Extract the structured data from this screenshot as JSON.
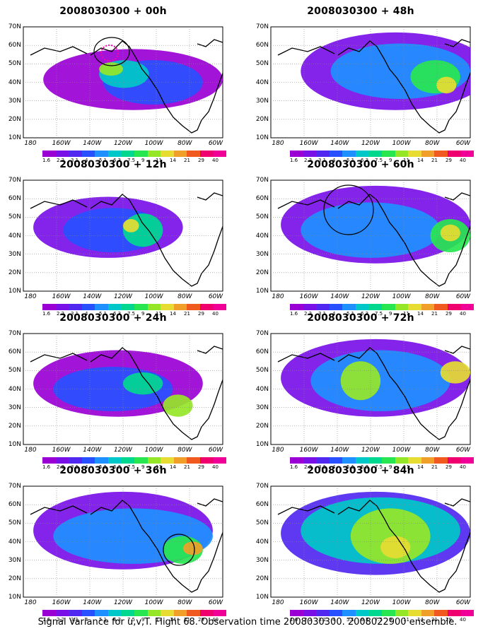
{
  "panels": [
    {
      "id": "p00",
      "title": "2008030300 + 00h",
      "target": "ellipse"
    },
    {
      "id": "p48",
      "title": "2008030300 + 48h",
      "target": "none"
    },
    {
      "id": "p12",
      "title": "2008030300 + 12h",
      "target": "none"
    },
    {
      "id": "p60",
      "title": "2008030300 + 60h",
      "target": "circle"
    },
    {
      "id": "p24",
      "title": "2008030300 + 24h",
      "target": "none"
    },
    {
      "id": "p72",
      "title": "2008030300 + 72h",
      "target": "none"
    },
    {
      "id": "p36",
      "title": "2008030300 + 36h",
      "target": "circle"
    },
    {
      "id": "p84",
      "title": "2008030300 + 84h",
      "target": "none"
    }
  ],
  "axes": {
    "lat_labels": [
      "70N",
      "60N",
      "50N",
      "40N",
      "30N",
      "20N",
      "10N"
    ],
    "lon_labels": [
      "180",
      "160W",
      "140W",
      "120W",
      "100W",
      "80W",
      "60W"
    ]
  },
  "colorbar": {
    "labels": [
      "1.6",
      "2.2",
      "3.1",
      "4",
      "5.1",
      "6.3",
      "7.5",
      "9",
      "11",
      "14",
      "21",
      "29",
      "40"
    ],
    "colors": [
      "#9a00d4",
      "#7a10e8",
      "#5028f0",
      "#2850ff",
      "#1e90ff",
      "#00c8c8",
      "#00d890",
      "#28e650",
      "#96e628",
      "#e6dc32",
      "#f0a028",
      "#f05a1e",
      "#f0006e",
      "#f00096"
    ]
  },
  "caption": "Signal Variance for u,v,T. Flight 68. Observation time 2008030300. 2008022900 ensemble."
}
